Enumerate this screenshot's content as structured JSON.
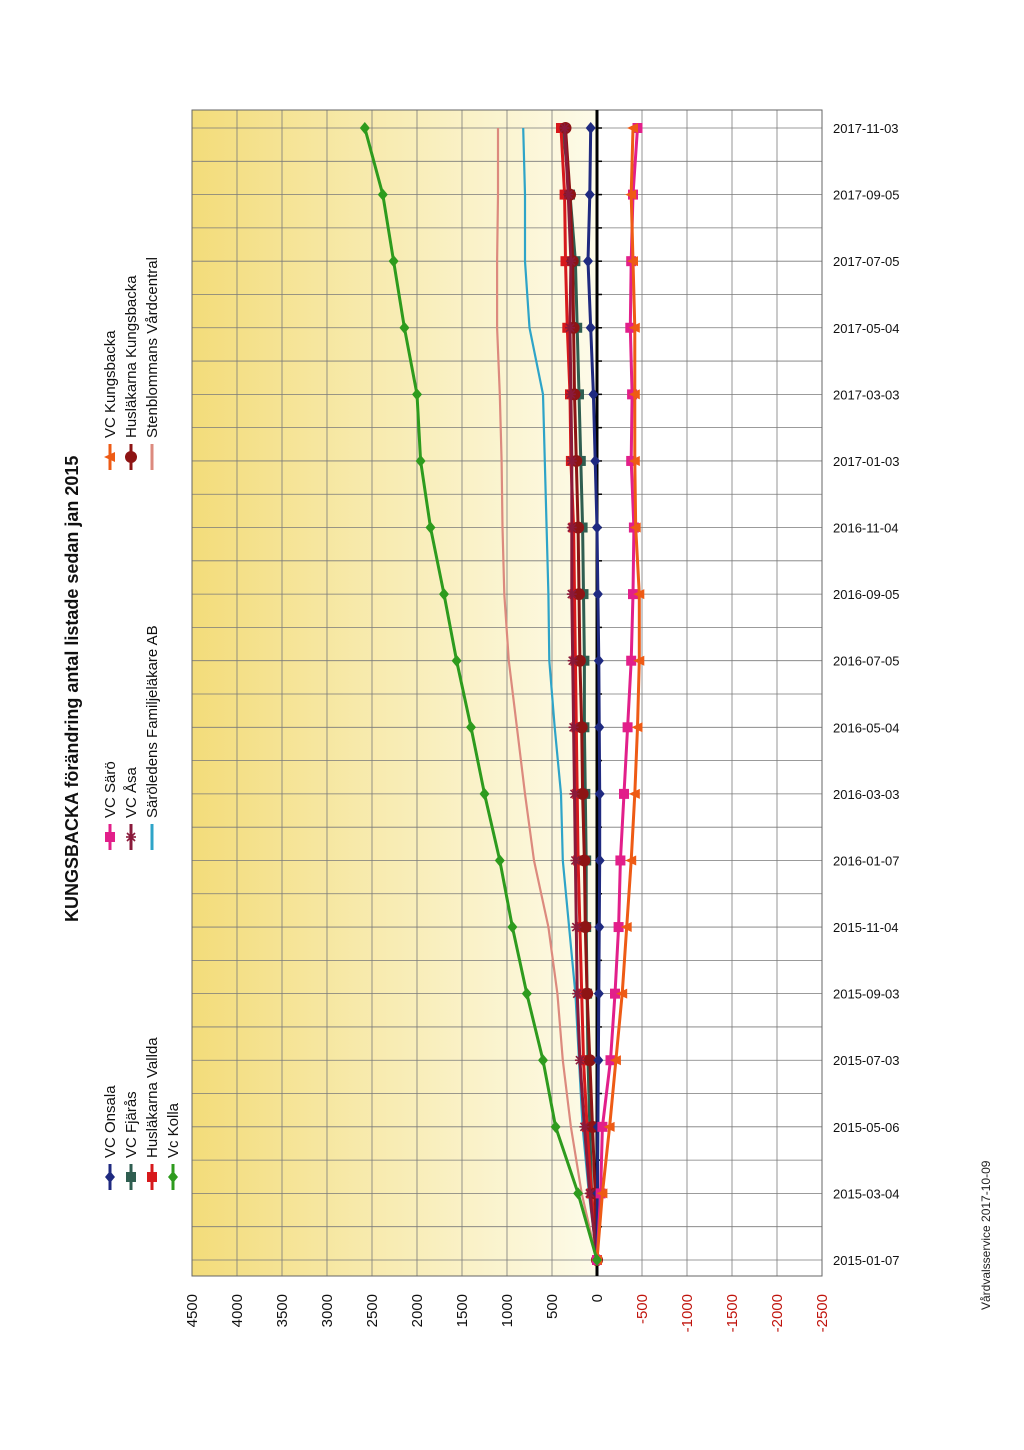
{
  "chart_data": {
    "type": "line",
    "title": "KUNGSBACKA förändring antal listade sedan jan 2015",
    "footer": "Vårdvalsservice 2017-10-09",
    "ylim": [
      -2500,
      4500
    ],
    "ytick_step": 500,
    "ytick_labels": [
      "4500",
      "4000",
      "3500",
      "3000",
      "2500",
      "2000",
      "1500",
      "1000",
      "500",
      "0",
      "-500",
      "-1000",
      "-1500",
      "-2000",
      "-2500"
    ],
    "categories": [
      "2015-01-07",
      "2015-03-04",
      "2015-05-06",
      "2015-07-03",
      "2015-09-03",
      "2015-11-04",
      "2016-01-07",
      "2016-03-03",
      "2016-05-04",
      "2016-07-05",
      "2016-09-05",
      "2016-11-04",
      "2017-01-03",
      "2017-03-03",
      "2017-05-04",
      "2017-07-05",
      "2017-09-05",
      "2017-11-03"
    ],
    "positive_band_color": "#f3dc7a",
    "negative_label_color": "#c0140c",
    "series": [
      {
        "name": "VC Onsala",
        "color": "#1f2a80",
        "marker": "diamond",
        "x": [
          0,
          1,
          2,
          3,
          4,
          5,
          6,
          7,
          8,
          9,
          10,
          11,
          12,
          13,
          14,
          15,
          16,
          17
        ],
        "y": [
          0,
          -5,
          -10,
          -15,
          -20,
          -25,
          -30,
          -30,
          -25,
          -20,
          -10,
          0,
          20,
          40,
          70,
          100,
          80,
          70
        ]
      },
      {
        "name": "VC Fjärås",
        "color": "#2f5e50",
        "marker": "square",
        "x": [
          0,
          1,
          2,
          3,
          4,
          5,
          6,
          7,
          8,
          9,
          10,
          11,
          12,
          13,
          14,
          15,
          16,
          17
        ],
        "y": [
          0,
          60,
          80,
          100,
          110,
          120,
          120,
          130,
          140,
          140,
          150,
          160,
          180,
          200,
          220,
          240,
          300,
          380
        ]
      },
      {
        "name": "Husläkarna Vallda",
        "color": "#d7191c",
        "marker": "square",
        "x": [
          0,
          1,
          2,
          3,
          4,
          5,
          6,
          7,
          8,
          9,
          10,
          11,
          12,
          13,
          14,
          15,
          16,
          17
        ],
        "y": [
          0,
          60,
          110,
          150,
          170,
          190,
          210,
          220,
          230,
          240,
          250,
          260,
          290,
          300,
          330,
          350,
          360,
          400
        ]
      },
      {
        "name": "Vc Kolla",
        "color": "#2e9b1e",
        "marker": "diamond",
        "x": [
          0,
          1,
          2,
          3,
          4,
          5,
          6,
          7,
          8,
          9,
          10,
          11,
          12,
          13,
          14,
          15,
          16,
          17
        ],
        "y": [
          0,
          210,
          460,
          600,
          780,
          940,
          1080,
          1250,
          1400,
          1560,
          1700,
          1850,
          1960,
          2000,
          2140,
          2260,
          2380,
          2580
        ]
      },
      {
        "name": "VC Särö",
        "color": "#e21f8a",
        "marker": "square",
        "x": [
          0,
          1,
          2,
          3,
          4,
          5,
          6,
          7,
          8,
          9,
          10,
          11,
          12,
          13,
          14,
          15,
          16,
          17
        ],
        "y": [
          0,
          -40,
          -60,
          -150,
          -200,
          -240,
          -260,
          -300,
          -340,
          -380,
          -400,
          -410,
          -380,
          -390,
          -370,
          -380,
          -400,
          -450
        ]
      },
      {
        "name": "VC Åsa",
        "color": "#8a1a3b",
        "marker": "star",
        "x": [
          0,
          1,
          2,
          3,
          4,
          5,
          6,
          7,
          8,
          9,
          10,
          11,
          12,
          13,
          14,
          15,
          16,
          17
        ],
        "y": [
          0,
          80,
          140,
          190,
          220,
          230,
          240,
          250,
          260,
          270,
          280,
          280,
          280,
          290,
          300,
          290,
          320,
          360
        ]
      },
      {
        "name": "Säröledens Familjeläkare AB",
        "color": "#2ea4c8",
        "marker": "none",
        "x": [
          0,
          1,
          2,
          3,
          4,
          5,
          6,
          7,
          8,
          9,
          10,
          11,
          12,
          13,
          14,
          15,
          16,
          17
        ],
        "y": [
          0,
          90,
          160,
          200,
          240,
          310,
          380,
          400,
          470,
          530,
          540,
          560,
          580,
          600,
          750,
          800,
          800,
          820
        ]
      },
      {
        "name": "VC Kungsbacka",
        "color": "#ee5b15",
        "marker": "triangle",
        "x": [
          0,
          1,
          2,
          3,
          4,
          5,
          6,
          7,
          8,
          9,
          10,
          11,
          12,
          13,
          14,
          15,
          16,
          17
        ],
        "y": [
          0,
          -60,
          -140,
          -210,
          -280,
          -330,
          -380,
          -420,
          -450,
          -470,
          -470,
          -430,
          -420,
          -420,
          -420,
          -400,
          -380,
          -400
        ]
      },
      {
        "name": "Husläkarna Kungsbacka",
        "color": "#8e1414",
        "marker": "circle",
        "x": [
          0,
          1,
          2,
          3,
          4,
          5,
          6,
          7,
          8,
          9,
          10,
          11,
          12,
          13,
          14,
          15,
          16,
          17
        ],
        "y": [
          0,
          20,
          50,
          80,
          110,
          130,
          140,
          160,
          170,
          190,
          200,
          210,
          230,
          250,
          260,
          270,
          300,
          350
        ]
      },
      {
        "name": "Stenblommans Vårdcentral",
        "color": "#dc8a7e",
        "marker": "none",
        "x": [
          0,
          1,
          2,
          3,
          4,
          5,
          6,
          7,
          8,
          9,
          10,
          11,
          12,
          13,
          14,
          15,
          16,
          17
        ],
        "y": [
          0,
          170,
          290,
          380,
          440,
          540,
          700,
          800,
          890,
          980,
          1030,
          1050,
          1060,
          1080,
          1110,
          1110,
          1100,
          1100
        ]
      }
    ],
    "legend": {
      "group1": [
        "VC Onsala",
        "VC Fjärås",
        "Husläkarna Vallda",
        "Vc Kolla"
      ],
      "group2": [
        "VC Särö",
        "VC Åsa",
        "Säröledens Familjeläkare AB"
      ],
      "group3": [
        "VC Kungsbacka",
        "Husläkarna Kungsbacka",
        "Stenblommans Vårdcentral"
      ]
    }
  }
}
